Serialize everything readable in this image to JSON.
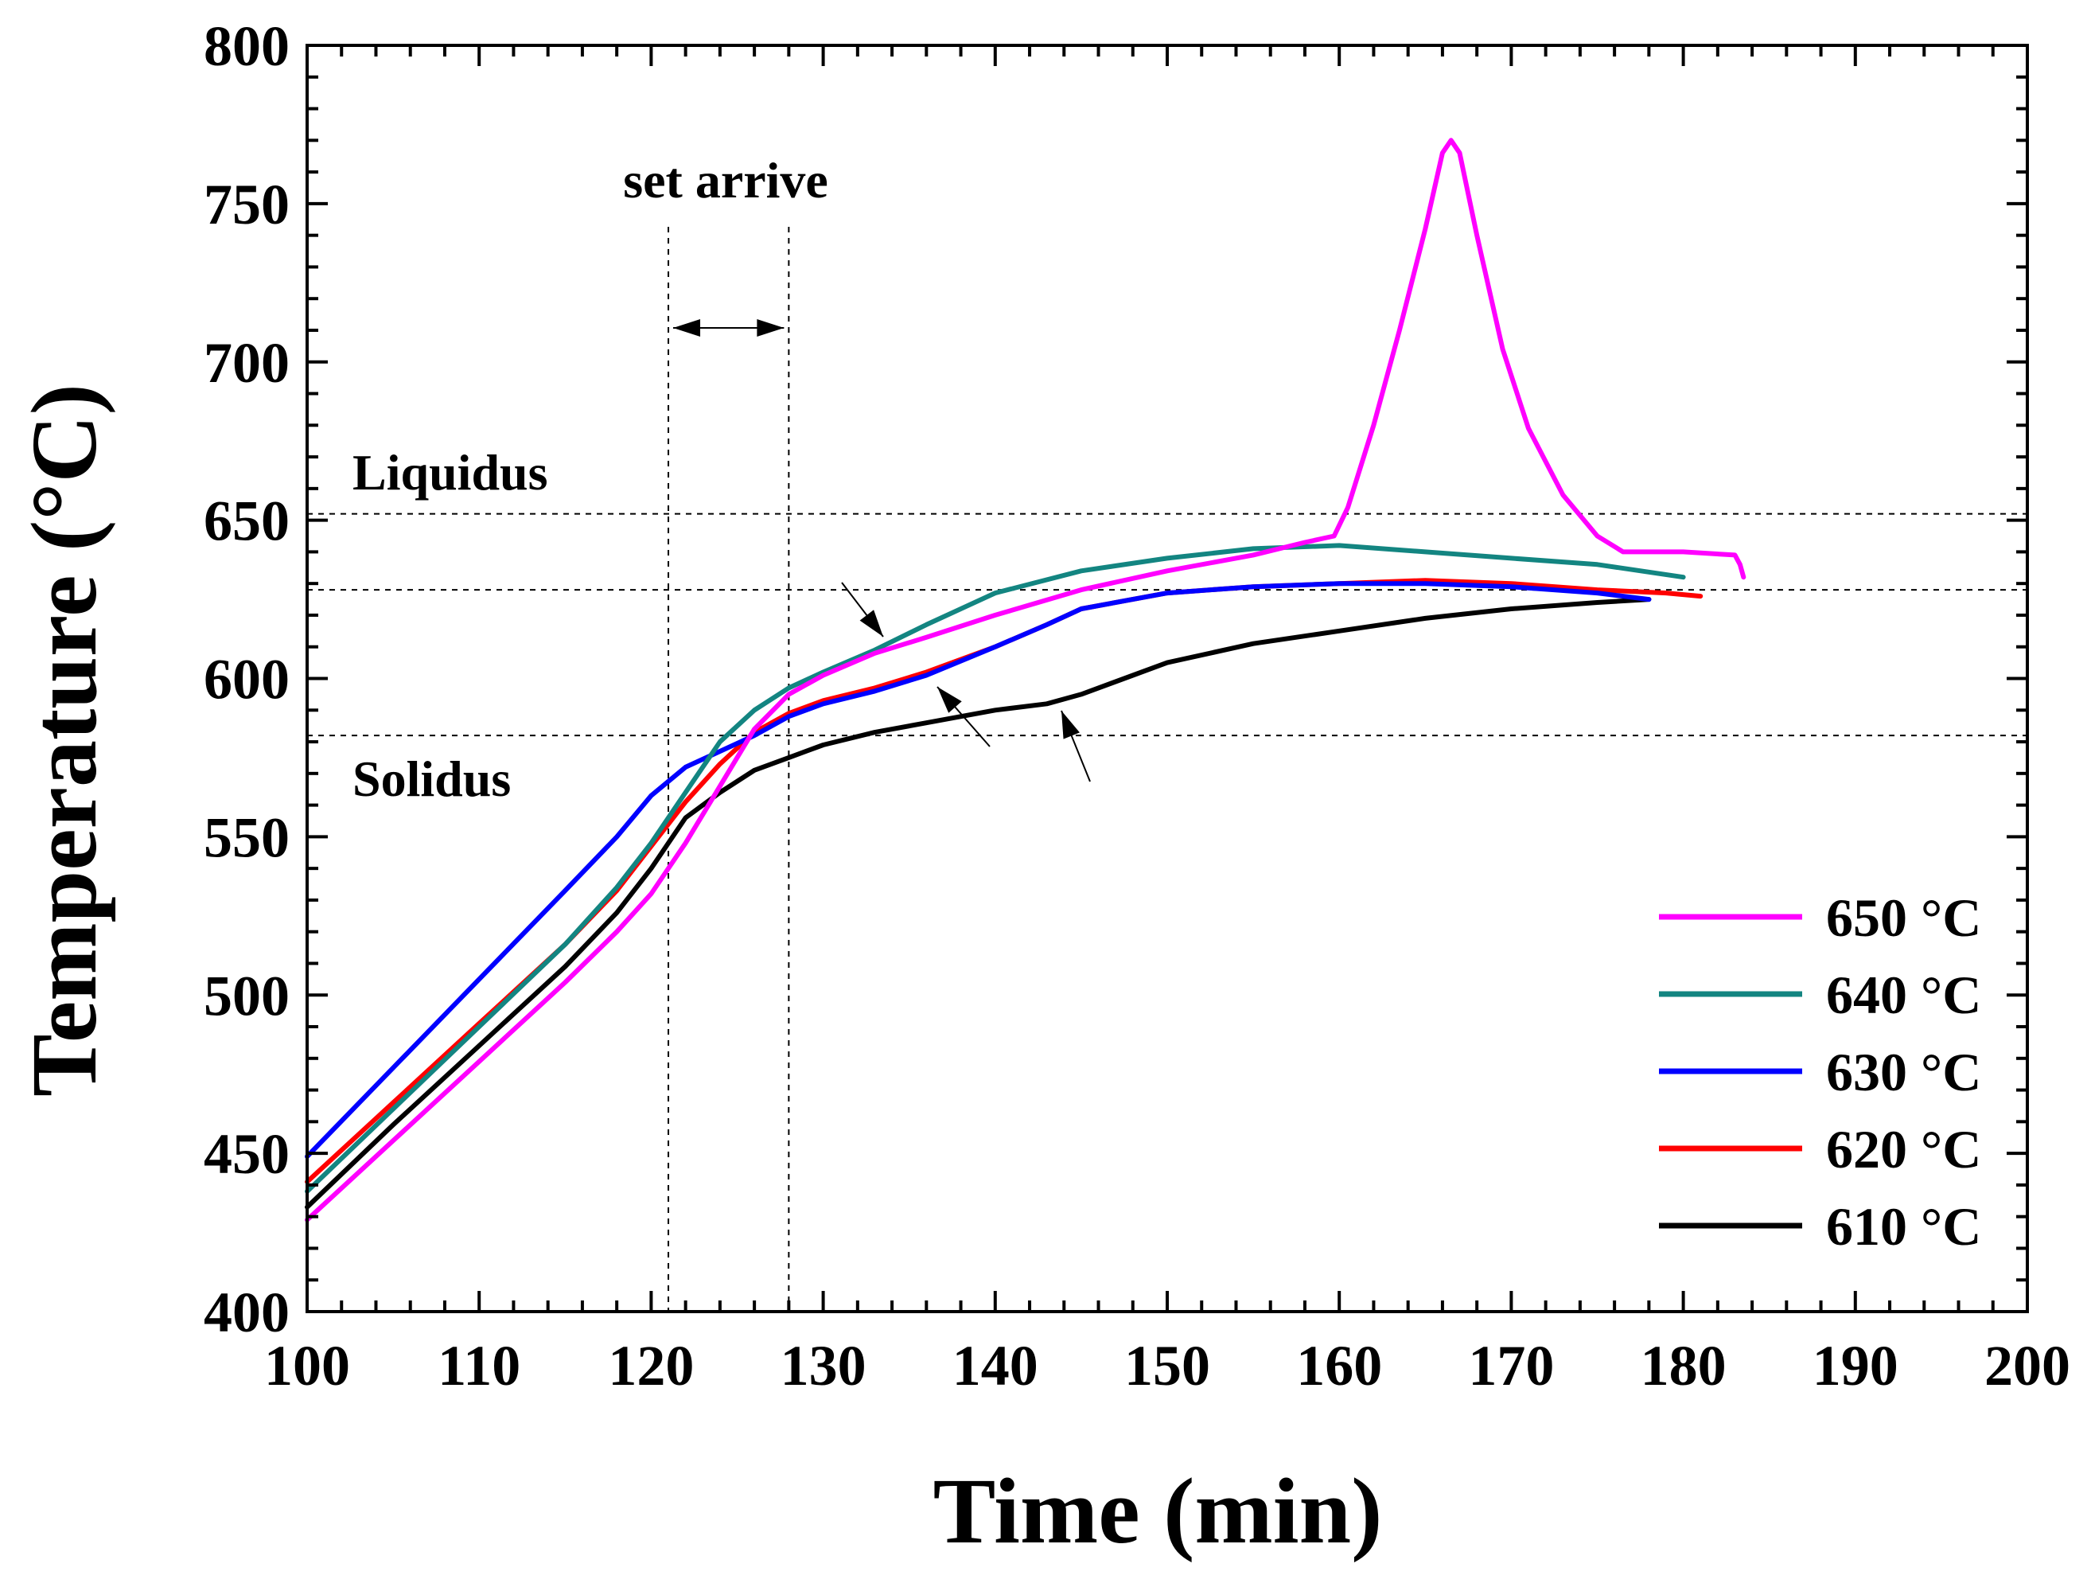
{
  "chart_data": {
    "type": "line",
    "title": "",
    "xlabel": "Time (min)",
    "ylabel": "Temperature (°C)",
    "xlim": [
      100,
      200
    ],
    "ylim": [
      400,
      800
    ],
    "xticks": [
      100,
      110,
      120,
      130,
      140,
      150,
      160,
      170,
      180,
      190,
      200
    ],
    "yticks": [
      400,
      450,
      500,
      550,
      600,
      650,
      700,
      750,
      800
    ],
    "x_minor_step": 2,
    "y_minor_step": 10,
    "grid": false,
    "legend_position": "bottom-right",
    "reference_lines": {
      "horizontal": [
        {
          "name": "liquidus-line",
          "y": 652
        },
        {
          "name": "middle-line",
          "y": 628
        },
        {
          "name": "solidus-line",
          "y": 582
        }
      ],
      "vertical": [
        {
          "name": "set-line",
          "x": 121
        },
        {
          "name": "arrive-line",
          "x": 128
        }
      ]
    },
    "annotations": {
      "liquidus": "Liquidus",
      "solidus": "Solidus",
      "set_arrive": "set arrive"
    },
    "series": [
      {
        "name": "650 °C",
        "color": "#ff00ff",
        "points": [
          [
            100,
            429
          ],
          [
            105,
            454
          ],
          [
            110,
            479
          ],
          [
            115,
            504
          ],
          [
            118,
            520
          ],
          [
            120,
            532
          ],
          [
            122,
            548
          ],
          [
            124,
            566
          ],
          [
            126,
            584
          ],
          [
            128,
            595
          ],
          [
            130,
            601
          ],
          [
            133,
            608
          ],
          [
            136,
            613
          ],
          [
            140,
            620
          ],
          [
            145,
            628
          ],
          [
            150,
            634
          ],
          [
            155,
            639
          ],
          [
            158,
            643
          ],
          [
            159.7,
            645
          ],
          [
            160.5,
            654
          ],
          [
            162,
            680
          ],
          [
            163.5,
            710
          ],
          [
            165,
            742
          ],
          [
            166,
            766
          ],
          [
            166.5,
            770
          ],
          [
            167,
            766
          ],
          [
            168,
            740
          ],
          [
            169.5,
            704
          ],
          [
            171,
            679
          ],
          [
            173,
            658
          ],
          [
            175,
            645
          ],
          [
            176.5,
            640
          ],
          [
            180,
            640
          ],
          [
            183,
            639
          ],
          [
            183.3,
            636
          ],
          [
            183.5,
            632
          ]
        ]
      },
      {
        "name": "640 °C",
        "color": "#138581",
        "points": [
          [
            100,
            438
          ],
          [
            105,
            464
          ],
          [
            110,
            490
          ],
          [
            115,
            516
          ],
          [
            118,
            534
          ],
          [
            120,
            548
          ],
          [
            122,
            564
          ],
          [
            124,
            580
          ],
          [
            126,
            590
          ],
          [
            128,
            597
          ],
          [
            130,
            602
          ],
          [
            133,
            609
          ],
          [
            136,
            617
          ],
          [
            140,
            627
          ],
          [
            145,
            634
          ],
          [
            150,
            638
          ],
          [
            155,
            641
          ],
          [
            160,
            642
          ],
          [
            165,
            640
          ],
          [
            170,
            638
          ],
          [
            175,
            636
          ],
          [
            180,
            632
          ]
        ]
      },
      {
        "name": "630 °C",
        "color": "#0000ff",
        "points": [
          [
            100,
            449
          ],
          [
            105,
            477
          ],
          [
            110,
            505
          ],
          [
            115,
            533
          ],
          [
            118,
            550
          ],
          [
            120,
            563
          ],
          [
            122,
            572
          ],
          [
            124,
            577
          ],
          [
            126,
            582
          ],
          [
            128,
            588
          ],
          [
            130,
            592
          ],
          [
            133,
            596
          ],
          [
            136,
            601
          ],
          [
            140,
            610
          ],
          [
            143,
            617
          ],
          [
            145,
            622
          ],
          [
            150,
            627
          ],
          [
            155,
            629
          ],
          [
            160,
            630
          ],
          [
            165,
            630
          ],
          [
            170,
            629
          ],
          [
            175,
            627
          ],
          [
            178,
            625
          ]
        ]
      },
      {
        "name": "620 °C",
        "color": "#ff0000",
        "points": [
          [
            100,
            441
          ],
          [
            105,
            466
          ],
          [
            110,
            491
          ],
          [
            115,
            516
          ],
          [
            118,
            533
          ],
          [
            120,
            547
          ],
          [
            122,
            561
          ],
          [
            124,
            573
          ],
          [
            126,
            583
          ],
          [
            128,
            589
          ],
          [
            130,
            593
          ],
          [
            133,
            597
          ],
          [
            136,
            602
          ],
          [
            140,
            610
          ],
          [
            143,
            617
          ],
          [
            145,
            622
          ],
          [
            150,
            627
          ],
          [
            155,
            629
          ],
          [
            160,
            630
          ],
          [
            165,
            631
          ],
          [
            170,
            630
          ],
          [
            175,
            628
          ],
          [
            179,
            627
          ],
          [
            181,
            626
          ]
        ]
      },
      {
        "name": "610 °C",
        "color": "#000000",
        "points": [
          [
            100,
            433
          ],
          [
            105,
            459
          ],
          [
            110,
            484
          ],
          [
            115,
            509
          ],
          [
            118,
            526
          ],
          [
            120,
            540
          ],
          [
            122,
            556
          ],
          [
            124,
            564
          ],
          [
            126,
            571
          ],
          [
            128,
            575
          ],
          [
            130,
            579
          ],
          [
            133,
            583
          ],
          [
            136,
            586
          ],
          [
            140,
            590
          ],
          [
            143,
            592
          ],
          [
            145,
            595
          ],
          [
            148,
            601
          ],
          [
            150,
            605
          ],
          [
            155,
            611
          ],
          [
            160,
            615
          ],
          [
            165,
            619
          ],
          [
            170,
            622
          ],
          [
            175,
            624
          ],
          [
            178,
            625
          ]
        ]
      }
    ]
  }
}
